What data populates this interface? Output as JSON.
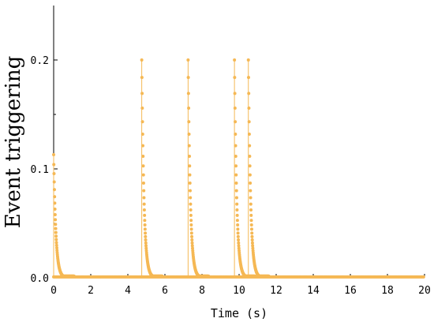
{
  "chart_data": {
    "type": "scatter",
    "xlabel": "Time (s)",
    "ylabel": "Event triggering",
    "xlim": [
      0,
      20
    ],
    "ylim": [
      0,
      0.25
    ],
    "x_ticks": [
      0,
      2,
      4,
      6,
      8,
      10,
      12,
      14,
      16,
      18,
      20
    ],
    "y_ticks": [
      0.0,
      0.1,
      0.2
    ],
    "y_tick_labels": [
      "0.0",
      "0.1",
      "0.2"
    ],
    "grid": false,
    "legend": "none",
    "color": "#f5b854",
    "bursts": [
      {
        "start": 0.0,
        "peak": 0.113
      },
      {
        "start": 4.75,
        "peak": 0.2
      },
      {
        "start": 7.25,
        "peak": 0.2
      },
      {
        "start": 9.75,
        "peak": 0.2
      },
      {
        "start": 10.5,
        "peak": 0.2
      }
    ]
  }
}
